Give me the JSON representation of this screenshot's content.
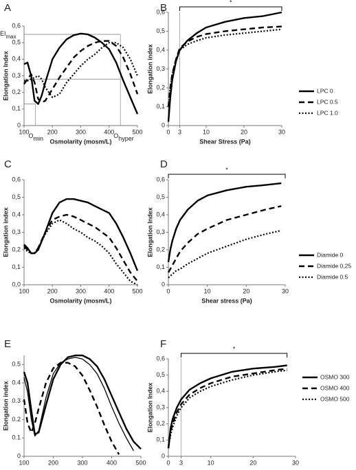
{
  "chart_data": [
    {
      "type": "line",
      "panel": "A",
      "x_label": "Osmolarity (mosm/L)",
      "y_label": "Elongation Index",
      "xlim": [
        100,
        500
      ],
      "xticks": [
        100,
        200,
        300,
        400,
        500
      ],
      "ylim": [
        0,
        0.6
      ],
      "yticks": [
        0,
        {
          "value": 0.1,
          "label": "0,1"
        },
        {
          "value": 0.2,
          "label": "0,2"
        },
        {
          "value": 0.3,
          "label": "0,3"
        },
        {
          "value": 0.4,
          "label": "0,4"
        },
        {
          "value": 0.5,
          "label": "0,5"
        },
        {
          "value": 0.6,
          "label": "0,6"
        }
      ],
      "x": [
        100,
        112,
        125,
        137,
        150,
        162,
        175,
        200,
        225,
        250,
        275,
        300,
        325,
        350,
        375,
        400,
        425,
        450,
        475,
        500
      ],
      "series": [
        {
          "color": "#000000",
          "dash": "solid",
          "values": [
            0.37,
            0.38,
            0.3,
            0.15,
            0.13,
            0.18,
            0.26,
            0.4,
            0.47,
            0.52,
            0.545,
            0.555,
            0.55,
            0.53,
            0.5,
            0.46,
            0.38,
            0.27,
            0.17,
            0.07
          ]
        },
        {
          "color": "#000000",
          "dash": "dashed",
          "values": [
            0.25,
            0.28,
            0.31,
            0.26,
            0.16,
            0.14,
            0.15,
            0.22,
            0.29,
            0.35,
            0.41,
            0.45,
            0.48,
            0.5,
            0.51,
            0.51,
            0.48,
            0.41,
            0.31,
            0.19
          ]
        },
        {
          "color": "#000000",
          "dash": "dotted",
          "values": [
            0.27,
            0.27,
            0.28,
            0.29,
            0.3,
            0.28,
            0.23,
            0.17,
            0.19,
            0.26,
            0.31,
            0.36,
            0.4,
            0.43,
            0.47,
            0.5,
            0.5,
            0.47,
            0.4,
            0.3
          ]
        }
      ],
      "hlines": [
        {
          "y": 0.55,
          "x_to": 440,
          "label": "EI",
          "sub": "max"
        },
        {
          "y": 0.28,
          "x_to": 440
        },
        {
          "y": 0.13,
          "x_to": 140
        }
      ],
      "vlines": [
        {
          "x": 140,
          "y_to": 0.13,
          "label": "O",
          "sub": "min"
        },
        {
          "x": 440,
          "y_to": 0.55,
          "label": "O",
          "sub": "hyper"
        }
      ]
    },
    {
      "type": "line",
      "panel": "B",
      "x_label": "Shear Stress (Pa)",
      "y_label": "Elongation index",
      "xlim": [
        0,
        30
      ],
      "xticks": [
        0,
        3,
        10,
        20,
        30
      ],
      "ylim": [
        0,
        0.6
      ],
      "yticks": [
        0,
        {
          "value": 0.1,
          "label": "0,1"
        },
        {
          "value": 0.2,
          "label": "0,2"
        },
        {
          "value": 0.3,
          "label": "0,3"
        },
        {
          "value": 0.4,
          "label": "0,4"
        },
        {
          "value": 0.5,
          "label": "0,5"
        },
        {
          "value": 0.6,
          "label": "0,6"
        }
      ],
      "x": [
        0,
        0.5,
        1,
        2,
        3,
        5,
        7.5,
        10,
        15,
        20,
        25,
        30
      ],
      "series": [
        {
          "name": "LPC 0",
          "color": "#000000",
          "dash": "solid",
          "values": [
            0.02,
            0.15,
            0.24,
            0.34,
            0.4,
            0.45,
            0.49,
            0.52,
            0.55,
            0.57,
            0.58,
            0.6
          ]
        },
        {
          "name": "LPC 0.5",
          "color": "#000000",
          "dash": "dashed",
          "values": [
            0.1,
            0.2,
            0.27,
            0.35,
            0.41,
            0.445,
            0.47,
            0.485,
            0.5,
            0.51,
            0.52,
            0.525
          ]
        },
        {
          "name": "LPC 1.0",
          "color": "#000000",
          "dash": "dotted",
          "values": [
            0.1,
            0.2,
            0.27,
            0.35,
            0.4,
            0.43,
            0.45,
            0.465,
            0.48,
            0.49,
            0.5,
            0.51
          ]
        }
      ],
      "vlines": [
        {
          "x": 3,
          "y_to": 0.6
        }
      ],
      "bracket": {
        "x": [
          3,
          30
        ],
        "label": "*"
      }
    },
    {
      "type": "line",
      "panel": "C",
      "x_label": "Osmolarity (mosm/L)",
      "y_label": "Elongation index",
      "xlim": [
        100,
        500
      ],
      "xticks": [
        100,
        200,
        300,
        400,
        500
      ],
      "ylim": [
        0,
        0.6
      ],
      "yticks": [
        {
          "value": 0,
          "label": "0,0"
        },
        {
          "value": 0.1,
          "label": "0,1"
        },
        {
          "value": 0.2,
          "label": "0,2"
        },
        {
          "value": 0.3,
          "label": "0,3"
        },
        {
          "value": 0.4,
          "label": "0,4"
        },
        {
          "value": 0.5,
          "label": "0,5"
        },
        {
          "value": 0.6,
          "label": "0,6"
        }
      ],
      "x": [
        100,
        112,
        125,
        137,
        150,
        175,
        200,
        225,
        250,
        275,
        300,
        325,
        350,
        375,
        400,
        425,
        450,
        475,
        500
      ],
      "series": [
        {
          "color": "#000000",
          "dash": "solid",
          "values": [
            0.23,
            0.21,
            0.18,
            0.18,
            0.2,
            0.3,
            0.41,
            0.47,
            0.49,
            0.49,
            0.48,
            0.47,
            0.45,
            0.43,
            0.41,
            0.35,
            0.27,
            0.18,
            0.08
          ]
        },
        {
          "color": "#000000",
          "dash": "dashed",
          "values": [
            0.22,
            0.2,
            0.18,
            0.18,
            0.21,
            0.3,
            0.37,
            0.39,
            0.4,
            0.39,
            0.37,
            0.35,
            0.33,
            0.3,
            0.27,
            0.21,
            0.14,
            0.07,
            0.02
          ]
        },
        {
          "color": "#000000",
          "dash": "dotted",
          "values": [
            0.21,
            0.19,
            0.18,
            0.18,
            0.21,
            0.29,
            0.35,
            0.37,
            0.35,
            0.32,
            0.3,
            0.27,
            0.25,
            0.22,
            0.18,
            0.12,
            0.07,
            0.02,
            0.0
          ]
        }
      ]
    },
    {
      "type": "line",
      "panel": "D",
      "x_label": "Shear stress (Pa)",
      "y_label": "Elongation Index",
      "xlim": [
        0,
        30
      ],
      "xticks": [
        0,
        10,
        20,
        30
      ],
      "ylim": [
        0,
        0.6
      ],
      "yticks": [
        0,
        {
          "value": 0.1,
          "label": "0,1"
        },
        {
          "value": 0.2,
          "label": "0,2"
        },
        {
          "value": 0.3,
          "label": "0,3"
        },
        {
          "value": 0.4,
          "label": "0,4"
        },
        {
          "value": 0.5,
          "label": "0,5"
        },
        {
          "value": 0.6,
          "label": "0,6"
        }
      ],
      "x": [
        0,
        0.5,
        1,
        2,
        3,
        5,
        7.5,
        10,
        15,
        20,
        25,
        29
      ],
      "series": [
        {
          "name": "Diamide 0",
          "color": "#000000",
          "dash": "solid",
          "values": [
            0.13,
            0.2,
            0.25,
            0.32,
            0.37,
            0.43,
            0.48,
            0.51,
            0.54,
            0.56,
            0.57,
            0.58
          ]
        },
        {
          "name": "Diamide 0,25",
          "color": "#000000",
          "dash": "dashed",
          "values": [
            0.07,
            0.09,
            0.11,
            0.15,
            0.19,
            0.24,
            0.29,
            0.32,
            0.37,
            0.4,
            0.43,
            0.45
          ]
        },
        {
          "name": "Diamide 0.5",
          "color": "#000000",
          "dash": "dotted",
          "values": [
            0.04,
            0.05,
            0.06,
            0.08,
            0.09,
            0.12,
            0.15,
            0.18,
            0.22,
            0.26,
            0.29,
            0.31
          ]
        }
      ],
      "bracket": {
        "x": [
          0,
          30
        ],
        "label": "*"
      }
    },
    {
      "type": "line",
      "panel": "E",
      "x_label": "Osmolarity (mosm/l)",
      "y_label": "Elongation index",
      "text_color": "#555555",
      "xlim": [
        100,
        500
      ],
      "xticks": [
        100,
        200,
        300,
        400,
        500
      ],
      "ylim": [
        0,
        0.55
      ],
      "yticks": [
        0,
        {
          "value": 0.1,
          "label": "0.1"
        },
        {
          "value": 0.2,
          "label": "0.2"
        },
        {
          "value": 0.3,
          "label": "0.3"
        },
        {
          "value": 0.4,
          "label": "0.4"
        },
        {
          "value": 0.5,
          "label": "0.5"
        }
      ],
      "x": [
        100,
        112,
        125,
        137,
        150,
        175,
        200,
        225,
        250,
        275,
        300,
        325,
        350,
        375,
        400,
        425,
        450,
        475,
        500
      ],
      "series": [
        {
          "color": "#000000",
          "dash": "solid",
          "values": [
            0.46,
            0.4,
            0.25,
            0.12,
            0.13,
            0.28,
            0.42,
            0.5,
            0.54,
            0.55,
            0.55,
            0.53,
            0.49,
            0.42,
            0.33,
            0.24,
            0.15,
            0.08,
            0.04
          ]
        },
        {
          "color": "#000000",
          "dash": "thin",
          "values": [
            0.43,
            0.35,
            0.2,
            0.11,
            0.14,
            0.32,
            0.45,
            0.51,
            0.53,
            0.54,
            0.53,
            0.5,
            0.45,
            0.37,
            0.27,
            0.18,
            0.1,
            0.03,
            null
          ]
        },
        {
          "color": "#000000",
          "dash": "dashed",
          "values": [
            0.31,
            0.18,
            0.13,
            0.18,
            0.26,
            0.4,
            0.48,
            0.51,
            0.51,
            0.49,
            0.44,
            0.36,
            0.27,
            0.17,
            0.08,
            0.01,
            null,
            null,
            null
          ]
        }
      ]
    },
    {
      "type": "line",
      "panel": "F",
      "x_label": "Shear Stress (Pa)",
      "y_label": "Elongation Index",
      "xlim": [
        0,
        30
      ],
      "xticks": [
        0,
        3,
        10,
        20,
        30
      ],
      "ylim": [
        0,
        0.6
      ],
      "yticks": [
        0,
        {
          "value": 0.1,
          "label": "0,1"
        },
        {
          "value": 0.2,
          "label": "0,2"
        },
        {
          "value": 0.3,
          "label": "0,3"
        },
        {
          "value": 0.4,
          "label": "0,4"
        },
        {
          "value": 0.5,
          "label": "0,5"
        },
        {
          "value": 0.6,
          "label": "0,6"
        }
      ],
      "x": [
        0,
        0.5,
        1,
        2,
        3,
        5,
        7.5,
        10,
        15,
        20,
        25,
        28
      ],
      "series": [
        {
          "name": "OSMO 300",
          "color": "#000000",
          "dash": "solid",
          "values": [
            0.05,
            0.17,
            0.23,
            0.3,
            0.35,
            0.41,
            0.45,
            0.48,
            0.52,
            0.54,
            0.55,
            0.56
          ]
        },
        {
          "name": "OSMO 400",
          "color": "#000000",
          "dash": "dashed",
          "values": [
            0.05,
            0.15,
            0.2,
            0.27,
            0.32,
            0.38,
            0.42,
            0.45,
            0.49,
            0.51,
            0.53,
            0.54
          ]
        },
        {
          "name": "OSMO 500",
          "color": "#000000",
          "dash": "dotted",
          "values": [
            0.05,
            0.13,
            0.18,
            0.25,
            0.3,
            0.36,
            0.4,
            0.43,
            0.47,
            0.5,
            0.52,
            0.53
          ]
        }
      ],
      "vlines": [
        {
          "x": 3,
          "y_to": 0.6
        }
      ],
      "bracket": {
        "x": [
          3,
          28
        ],
        "label": "*"
      }
    }
  ]
}
